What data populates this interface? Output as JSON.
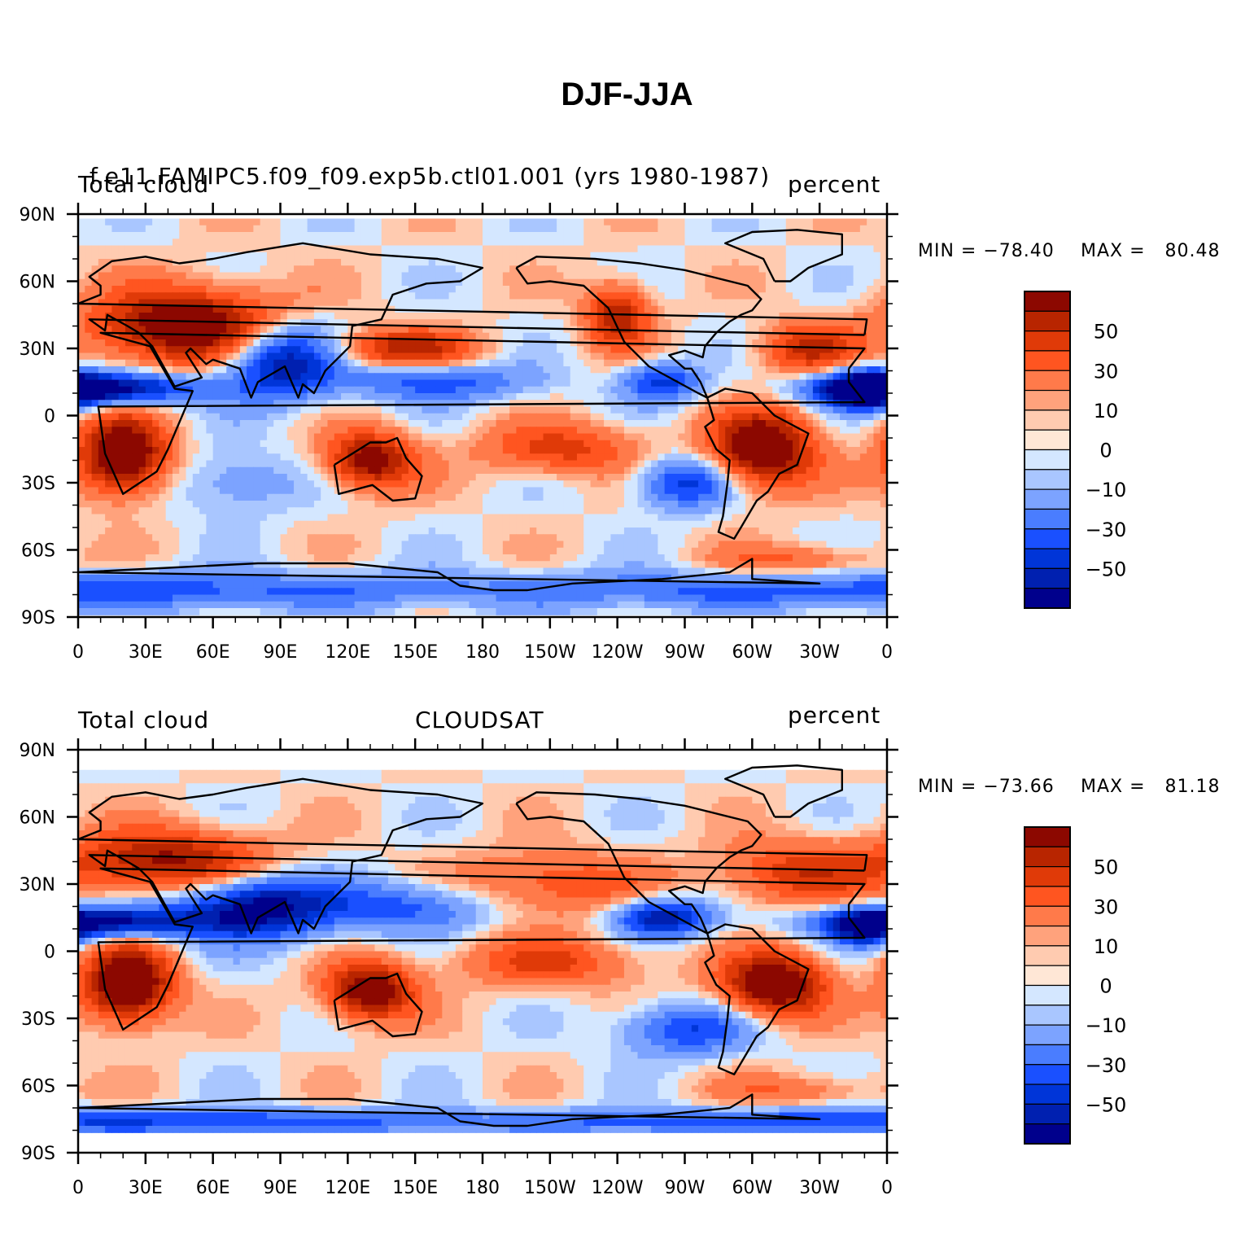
{
  "title": "DJF-JJA",
  "chart_data": [
    {
      "type": "heatmap",
      "title": "f.e11.FAMIPC5.f09_f09.exp5b.ctl01.001 (yrs 1980-1987)",
      "left_label": "Total cloud",
      "right_label": "percent",
      "min_label": "MIN = −78.40",
      "max_label": "MAX =   80.48",
      "min": -78.4,
      "max": 80.48,
      "units": "percent",
      "lat_ticks": [
        "90N",
        "60N",
        "30N",
        "0",
        "30S",
        "60S",
        "90S"
      ],
      "lon_ticks": [
        "0",
        "30E",
        "60E",
        "90E",
        "120E",
        "150E",
        "180",
        "150W",
        "120W",
        "90W",
        "60W",
        "30W",
        "0"
      ],
      "colorbar_labels": [
        "50",
        "30",
        "10",
        "0",
        "−10",
        "−30",
        "−50"
      ],
      "levels": [
        -70,
        -60,
        -50,
        -40,
        -30,
        -20,
        -10,
        -5,
        0,
        5,
        10,
        20,
        30,
        40,
        50,
        60,
        70
      ],
      "features": [
        {
          "lon": 20,
          "lat": -18,
          "value": 75,
          "rx": 14,
          "ry": 12
        },
        {
          "lon": -55,
          "lat": -15,
          "value": 72,
          "rx": 16,
          "ry": 12
        },
        {
          "lon": 130,
          "lat": -20,
          "value": 60,
          "rx": 14,
          "ry": 9
        },
        {
          "lon": 50,
          "lat": 40,
          "value": 70,
          "rx": 30,
          "ry": 12
        },
        {
          "lon": -120,
          "lat": 45,
          "value": 50,
          "rx": 10,
          "ry": 10
        },
        {
          "lon": 145,
          "lat": 30,
          "value": 45,
          "rx": 22,
          "ry": 6
        },
        {
          "lon": -145,
          "lat": -15,
          "value": 35,
          "rx": 25,
          "ry": 8
        },
        {
          "lon": -35,
          "lat": 30,
          "value": 40,
          "rx": 15,
          "ry": 8
        },
        {
          "lon": 90,
          "lat": 25,
          "value": -65,
          "rx": 18,
          "ry": 12
        },
        {
          "lon": 10,
          "lat": 12,
          "value": -75,
          "rx": 30,
          "ry": 5
        },
        {
          "lon": -10,
          "lat": 12,
          "value": -70,
          "rx": 12,
          "ry": 6
        },
        {
          "lon": -90,
          "lat": -30,
          "value": -45,
          "rx": 15,
          "ry": 8
        },
        {
          "lon": -100,
          "lat": 15,
          "value": -45,
          "rx": 12,
          "ry": 6
        },
        {
          "lon": 160,
          "lat": 15,
          "value": -35,
          "rx": 30,
          "ry": 6
        },
        {
          "lon": 70,
          "lat": -30,
          "value": -20,
          "rx": 20,
          "ry": 10
        },
        {
          "lon": 0,
          "lat": -78,
          "value": -35,
          "rx": 180,
          "ry": 6
        },
        {
          "lon": -40,
          "lat": -65,
          "value": 25,
          "rx": 25,
          "ry": 5
        }
      ]
    },
    {
      "type": "heatmap",
      "title": "CLOUDSAT",
      "left_label": "Total cloud",
      "right_label": "percent",
      "min_label": "MIN = −73.66",
      "max_label": "MAX =   81.18",
      "min": -73.66,
      "max": 81.18,
      "units": "percent",
      "lat_ticks": [
        "90N",
        "60N",
        "30N",
        "0",
        "30S",
        "60S",
        "90S"
      ],
      "lon_ticks": [
        "0",
        "30E",
        "60E",
        "90E",
        "120E",
        "150E",
        "180",
        "150W",
        "120W",
        "90W",
        "60W",
        "30W",
        "0"
      ],
      "colorbar_labels": [
        "50",
        "30",
        "10",
        "0",
        "−10",
        "−30",
        "−50"
      ],
      "levels": [
        -70,
        -60,
        -50,
        -40,
        -30,
        -20,
        -10,
        -5,
        0,
        5,
        10,
        20,
        30,
        40,
        50,
        60,
        70
      ],
      "features": [
        {
          "lon": 22,
          "lat": -15,
          "value": 75,
          "rx": 14,
          "ry": 12
        },
        {
          "lon": -50,
          "lat": -15,
          "value": 72,
          "rx": 16,
          "ry": 10
        },
        {
          "lon": 130,
          "lat": -18,
          "value": 65,
          "rx": 14,
          "ry": 9
        },
        {
          "lon": 40,
          "lat": 40,
          "value": 55,
          "rx": 30,
          "ry": 10
        },
        {
          "lon": -150,
          "lat": 30,
          "value": 30,
          "rx": 30,
          "ry": 10
        },
        {
          "lon": -40,
          "lat": 35,
          "value": 35,
          "rx": 25,
          "ry": 10
        },
        {
          "lon": -150,
          "lat": -5,
          "value": 30,
          "rx": 30,
          "ry": 8
        },
        {
          "lon": 80,
          "lat": 20,
          "value": -70,
          "rx": 25,
          "ry": 10
        },
        {
          "lon": 10,
          "lat": 13,
          "value": -70,
          "rx": 30,
          "ry": 5
        },
        {
          "lon": -100,
          "lat": 15,
          "value": -60,
          "rx": 15,
          "ry": 6
        },
        {
          "lon": -90,
          "lat": -35,
          "value": -40,
          "rx": 20,
          "ry": 8
        },
        {
          "lon": -10,
          "lat": 10,
          "value": -40,
          "rx": 10,
          "ry": 6
        },
        {
          "lon": 150,
          "lat": 20,
          "value": -35,
          "rx": 25,
          "ry": 8
        },
        {
          "lon": 0,
          "lat": -76,
          "value": -40,
          "rx": 180,
          "ry": 4
        },
        {
          "lon": -40,
          "lat": -62,
          "value": 20,
          "rx": 25,
          "ry": 5
        }
      ]
    }
  ]
}
